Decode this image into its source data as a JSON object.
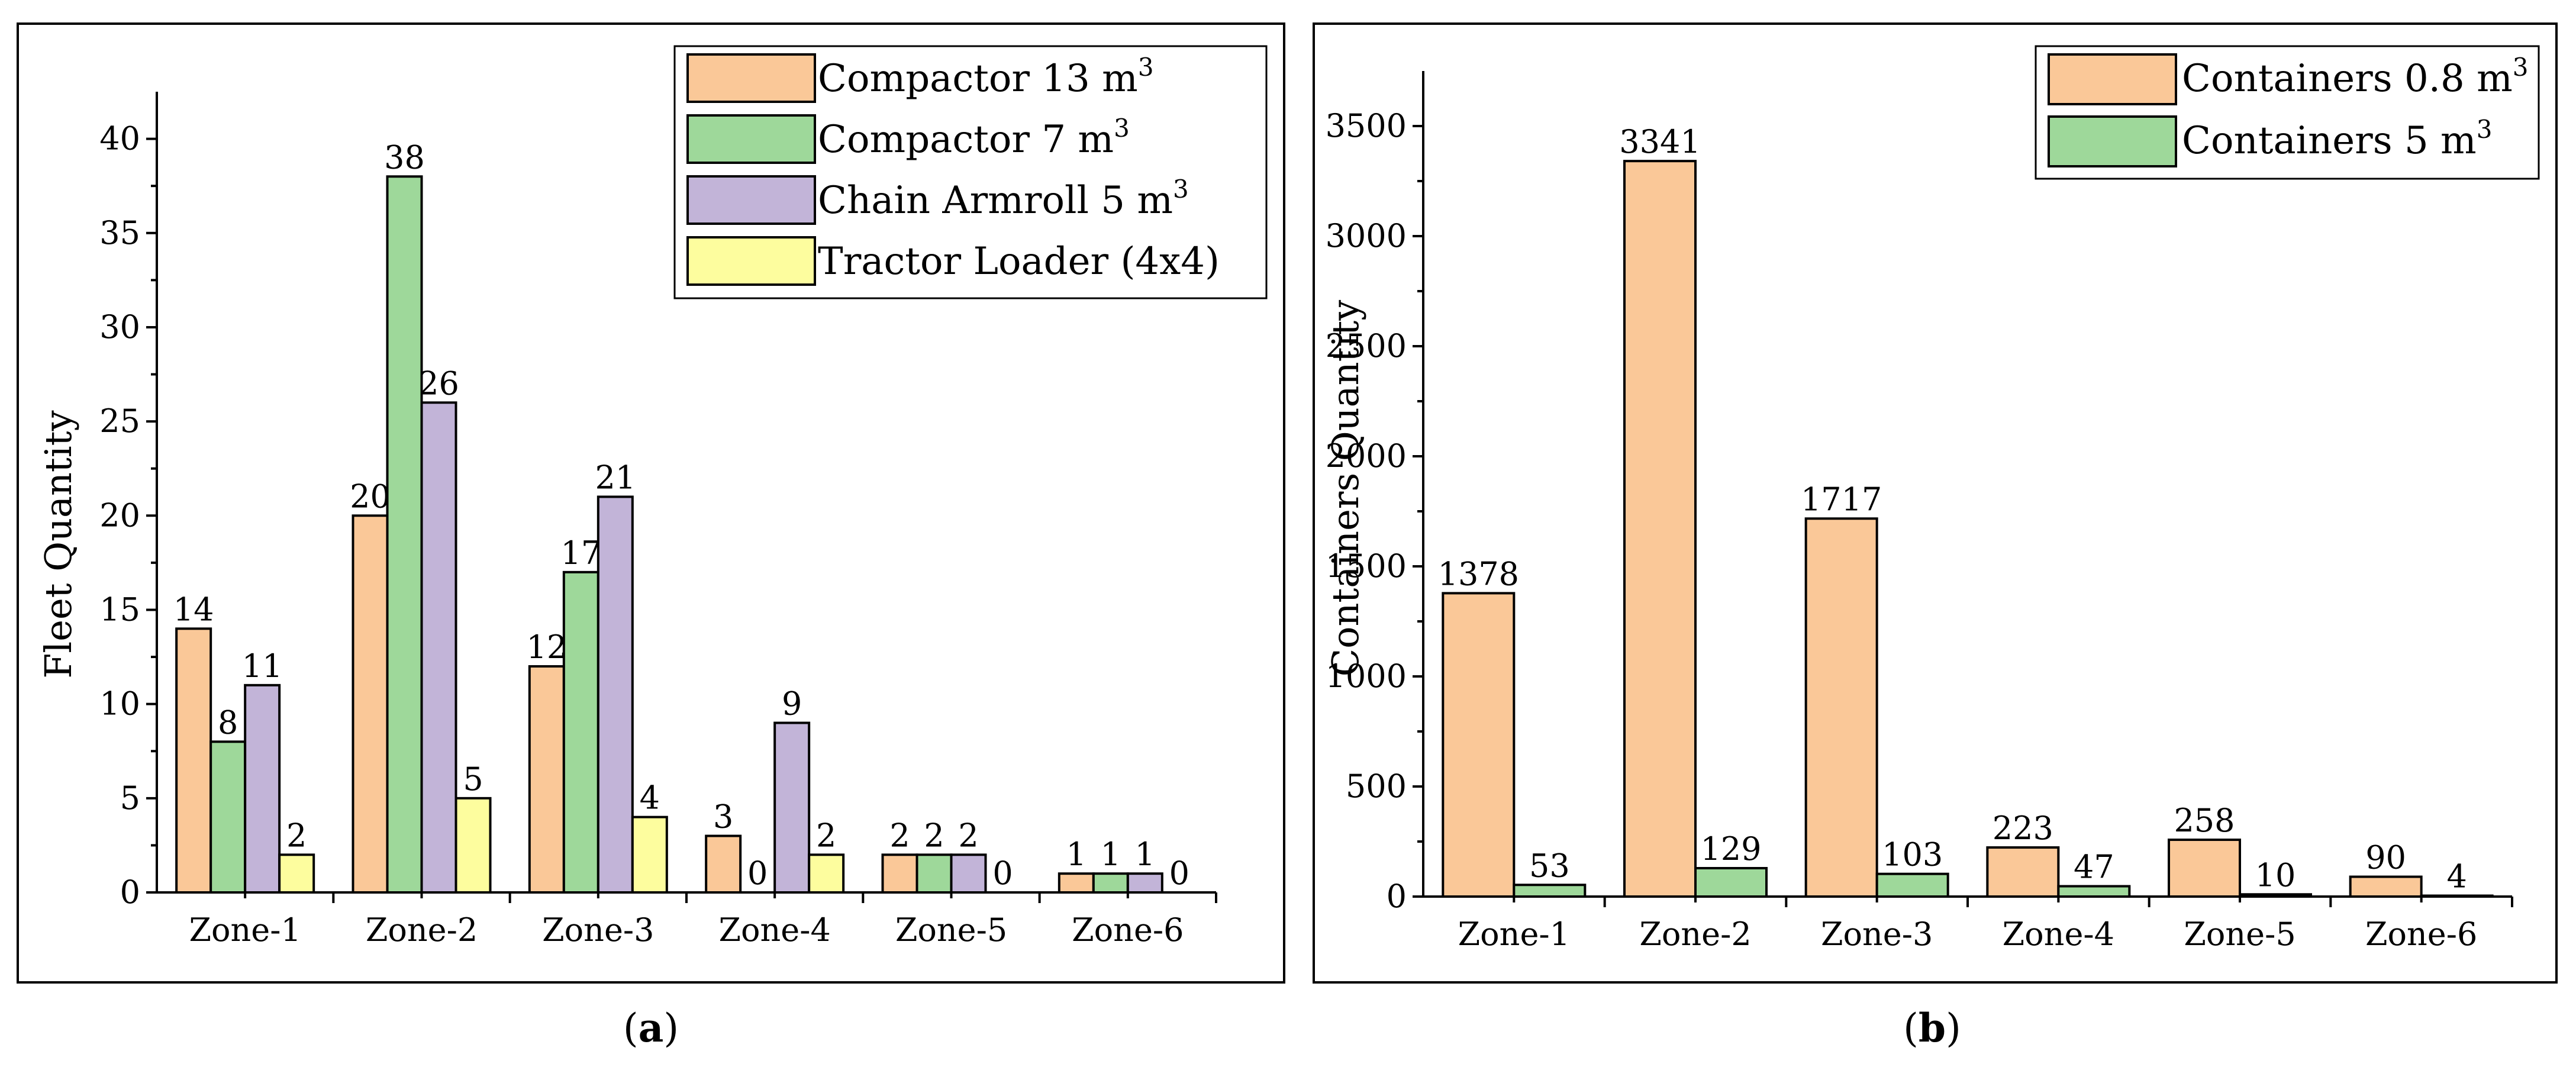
{
  "chart_data": [
    {
      "type": "bar",
      "categories": [
        "Zone-1",
        "Zone-2",
        "Zone-3",
        "Zone-4",
        "Zone-5",
        "Zone-6"
      ],
      "series": [
        {
          "name": "Compactor 13 m",
          "sup": "3",
          "color": "#FAC898",
          "values": [
            14,
            20,
            12,
            3,
            2,
            1
          ]
        },
        {
          "name": "Compactor 7 m",
          "sup": "3",
          "color": "#9ED89A",
          "values": [
            8,
            38,
            17,
            0,
            2,
            1
          ]
        },
        {
          "name": "Chain Armroll 5 m",
          "sup": "3",
          "color": "#C2B4D8",
          "values": [
            11,
            26,
            21,
            9,
            2,
            1
          ]
        },
        {
          "name": "Tractor Loader (4x4)",
          "sup": "",
          "color": "#FDFD9E",
          "values": [
            2,
            5,
            4,
            2,
            0,
            0
          ]
        }
      ],
      "title": "",
      "xlabel": "",
      "ylabel": "Fleet Quantity",
      "ylim": [
        0,
        42.5
      ],
      "yticks": [
        0,
        5,
        10,
        15,
        20,
        25,
        30,
        35,
        40
      ],
      "legend": "top-right",
      "caption_open": "(",
      "caption_letter": "a",
      "caption_close": ")"
    },
    {
      "type": "bar",
      "categories": [
        "Zone-1",
        "Zone-2",
        "Zone-3",
        "Zone-4",
        "Zone-5",
        "Zone-6"
      ],
      "series": [
        {
          "name": "Containers 0.8 m",
          "sup": "3",
          "color": "#FAC898",
          "values": [
            1378,
            3341,
            1717,
            223,
            258,
            90
          ]
        },
        {
          "name": "Containers 5 m",
          "sup": "3",
          "color": "#9ED89A",
          "values": [
            53,
            129,
            103,
            47,
            10,
            4
          ]
        }
      ],
      "title": "",
      "xlabel": "",
      "ylabel": "Containers Quantity",
      "ylim": [
        0,
        3750
      ],
      "yticks": [
        0,
        500,
        1000,
        1500,
        2000,
        2500,
        3000,
        3500
      ],
      "legend": "top-right",
      "caption_open": "(",
      "caption_letter": "b",
      "caption_close": ")"
    }
  ]
}
